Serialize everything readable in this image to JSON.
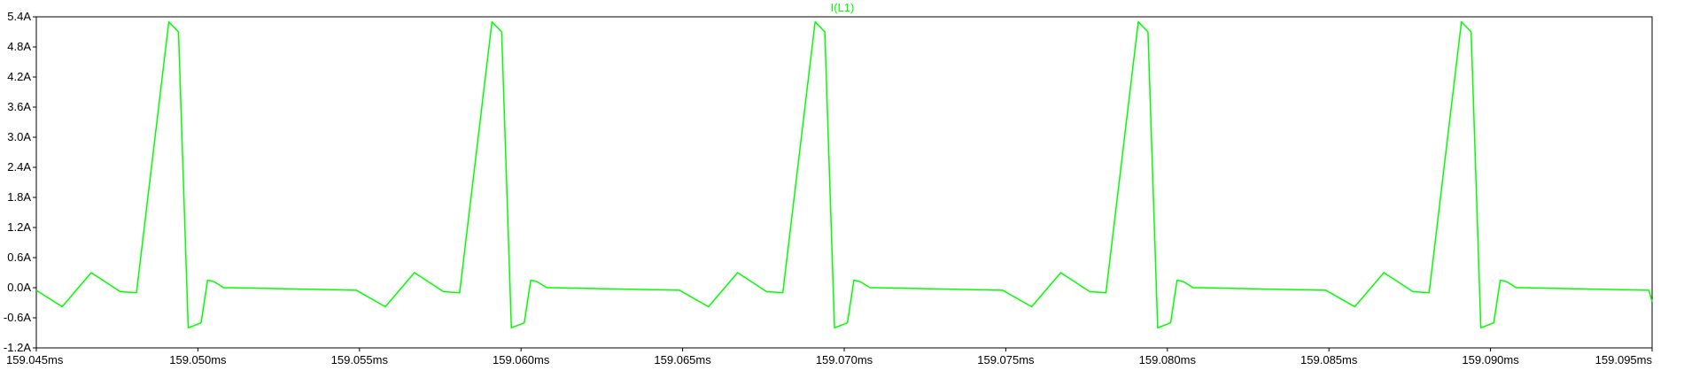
{
  "chart_data": {
    "type": "line",
    "title": "I(L1)",
    "xlabel": "",
    "ylabel": "",
    "x_unit": "ms",
    "y_unit": "A",
    "xlim": [
      159.045,
      159.095
    ],
    "ylim": [
      -1.2,
      5.4
    ],
    "grid": false,
    "x_ticks": [
      "159.045ms",
      "159.050ms",
      "159.055ms",
      "159.060ms",
      "159.065ms",
      "159.070ms",
      "159.075ms",
      "159.080ms",
      "159.085ms",
      "159.090ms",
      "159.095ms"
    ],
    "y_ticks": [
      "5.4A",
      "4.8A",
      "4.2A",
      "3.6A",
      "3.0A",
      "2.4A",
      "1.8A",
      "1.2A",
      "0.6A",
      "0.0A",
      "-0.6A",
      "-1.2A"
    ],
    "series": [
      {
        "name": "I(L1)",
        "color": "#00ff00",
        "x": [
          159.045,
          159.0458,
          159.0467,
          159.0476,
          159.0481,
          159.0491,
          159.0494,
          159.0497,
          159.0501,
          159.0503,
          159.0505,
          159.0508,
          159.051,
          159.0549,
          159.0558,
          159.0567,
          159.0576,
          159.0581,
          159.0591,
          159.0594,
          159.0597,
          159.0601,
          159.0603,
          159.0605,
          159.0608,
          159.061,
          159.0649,
          159.0658,
          159.0667,
          159.0676,
          159.0681,
          159.0691,
          159.0694,
          159.0697,
          159.0701,
          159.0703,
          159.0705,
          159.0708,
          159.071,
          159.0749,
          159.0758,
          159.0767,
          159.0776,
          159.0781,
          159.0791,
          159.0794,
          159.0797,
          159.0801,
          159.0803,
          159.0805,
          159.0808,
          159.081,
          159.0849,
          159.0858,
          159.0867,
          159.0876,
          159.0881,
          159.0891,
          159.0894,
          159.0897,
          159.0901,
          159.0903,
          159.0905,
          159.0908,
          159.091,
          159.0949,
          159.095
        ],
        "y": [
          -0.05,
          -0.38,
          0.3,
          -0.08,
          -0.1,
          5.3,
          5.1,
          -0.8,
          -0.7,
          0.15,
          0.12,
          0.0,
          0.0,
          -0.05,
          -0.38,
          0.3,
          -0.08,
          -0.1,
          5.3,
          5.1,
          -0.8,
          -0.7,
          0.15,
          0.12,
          0.0,
          0.0,
          -0.05,
          -0.38,
          0.3,
          -0.08,
          -0.1,
          5.3,
          5.1,
          -0.8,
          -0.7,
          0.15,
          0.12,
          0.0,
          0.0,
          -0.05,
          -0.38,
          0.3,
          -0.08,
          -0.1,
          5.3,
          5.1,
          -0.8,
          -0.7,
          0.15,
          0.12,
          0.0,
          0.0,
          -0.05,
          -0.38,
          0.3,
          -0.08,
          -0.1,
          5.3,
          5.1,
          -0.8,
          -0.7,
          0.15,
          0.12,
          0.0,
          0.0,
          -0.05,
          -0.28
        ]
      }
    ]
  }
}
